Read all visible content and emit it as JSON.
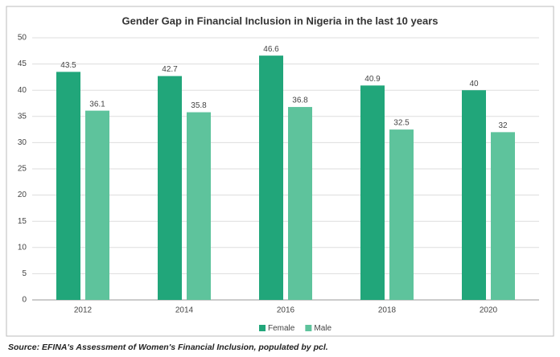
{
  "chart_data": {
    "type": "bar",
    "title": "Gender Gap in Financial Inclusion in Nigeria in the last 10 years",
    "categories": [
      "2012",
      "2014",
      "2016",
      "2018",
      "2020"
    ],
    "series": [
      {
        "name": "Female",
        "color": "#21a67a",
        "values": [
          43.5,
          42.7,
          46.6,
          40.9,
          40
        ]
      },
      {
        "name": "Male",
        "color": "#5ec39c",
        "values": [
          36.1,
          35.8,
          36.8,
          32.5,
          32
        ]
      }
    ],
    "ylim": [
      0,
      50
    ],
    "yticks": [
      0,
      5,
      10,
      15,
      20,
      25,
      30,
      35,
      40,
      45,
      50
    ],
    "grid": true,
    "legend": "bottom",
    "source": "Source: EFINA's Assessment of Women's Financial Inclusion, populated by pcl."
  }
}
